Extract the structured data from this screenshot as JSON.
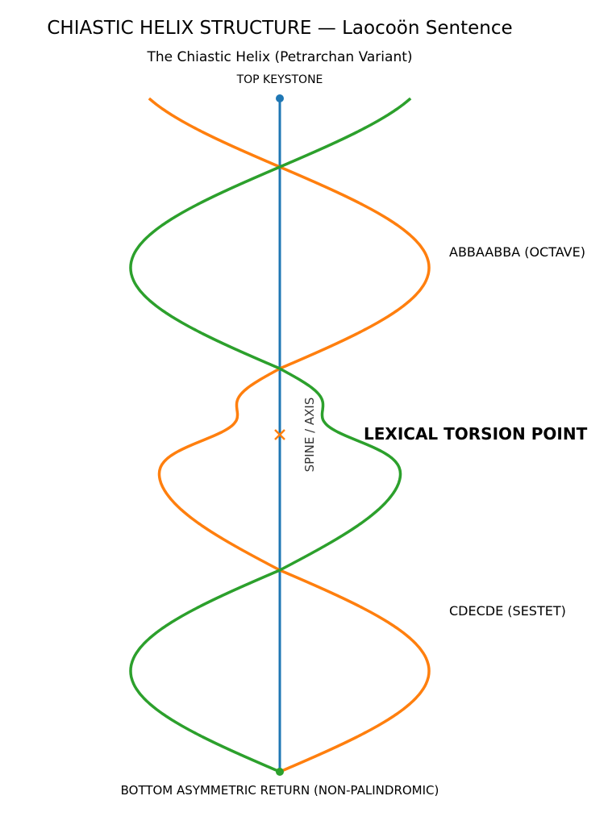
{
  "title": "CHIASTIC HELIX STRUCTURE — Laocoön Sentence",
  "subtitle": "The Chiastic Helix (Petrarchan Variant)",
  "labels": {
    "top": "TOP KEYSTONE",
    "bottom": "BOTTOM ASYMMETRIC RETURN (NON-PALINDROMIC)",
    "octave": "ABBAABBA (OCTAVE)",
    "sestet": "CDECDE (SESTET)",
    "torsion": "LEXICAL TORSION POINT",
    "spine": "SPINE / AXIS"
  },
  "colors": {
    "spine": "#1f77b4",
    "strand_a": "#ff7f0e",
    "strand_b": "#2ca02c"
  }
}
